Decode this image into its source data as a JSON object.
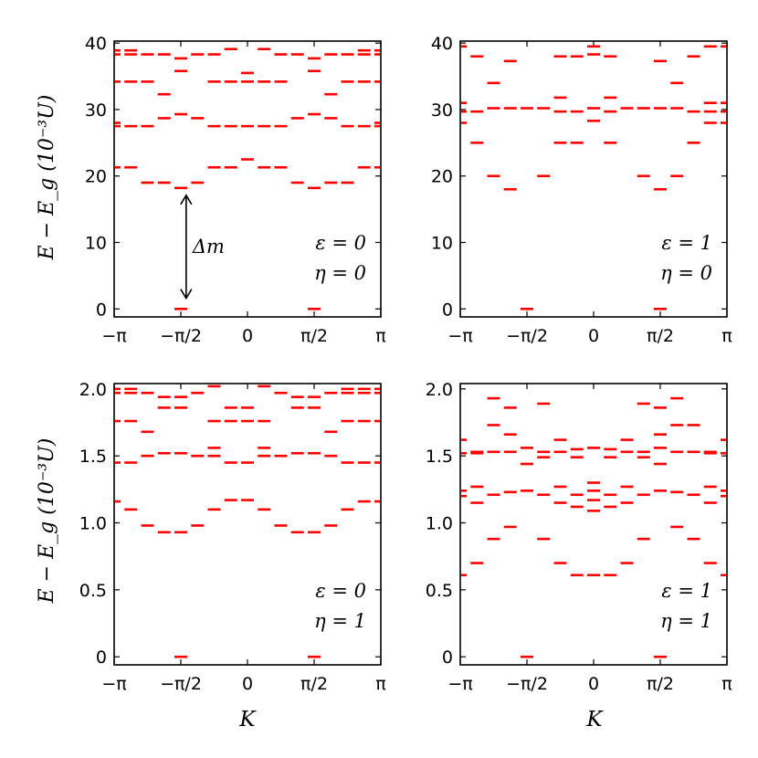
{
  "figure": {
    "ylabel": "E − E_g  (10⁻³U)",
    "xlabel": "K",
    "annotation": "Δm"
  },
  "chart_data": [
    {
      "type": "scatter",
      "title": "",
      "xlabel": "",
      "ylabel": "E − E_g (10⁻³U)",
      "xlim": [
        -3.1416,
        3.1416
      ],
      "ylim": [
        -1.2,
        40.3
      ],
      "xticks": [
        "−π",
        "−π/2",
        "0",
        "π/2",
        "π"
      ],
      "yticks": [
        0,
        10,
        20,
        30,
        40
      ],
      "ytick_labels": [
        "0",
        "10",
        "20",
        "30",
        "40"
      ],
      "parameters": [
        "ε = 0",
        "η = 0"
      ],
      "annotation": {
        "label": "Δm",
        "from": 18.2,
        "to": 0.5,
        "x": -1.5708
      },
      "marker_color": "#ff0000",
      "points": [
        {
          "x": -3.1416,
          "y": [
            21.3,
            27.5,
            28.0,
            34.2,
            38.3,
            38.9
          ]
        },
        {
          "x": -2.7489,
          "y": [
            21.3,
            27.5,
            34.2,
            38.3,
            38.9
          ]
        },
        {
          "x": -2.3562,
          "y": [
            19.0,
            27.5,
            34.2,
            38.3
          ]
        },
        {
          "x": -1.9635,
          "y": [
            19.0,
            28.7,
            32.3,
            38.3
          ]
        },
        {
          "x": -1.5708,
          "y": [
            0,
            18.2,
            29.3,
            35.8,
            37.7
          ]
        },
        {
          "x": -1.1781,
          "y": [
            19.0,
            28.7,
            38.3
          ]
        },
        {
          "x": -0.7854,
          "y": [
            21.3,
            27.5,
            34.2,
            38.3
          ]
        },
        {
          "x": -0.3927,
          "y": [
            21.3,
            27.5,
            34.2,
            39.1
          ]
        },
        {
          "x": 0.0,
          "y": [
            22.5,
            27.5,
            34.2,
            35.5
          ]
        },
        {
          "x": 0.3927,
          "y": [
            21.3,
            27.5,
            34.2,
            39.1
          ]
        },
        {
          "x": 0.7854,
          "y": [
            21.3,
            27.5,
            34.2,
            38.3
          ]
        },
        {
          "x": 1.1781,
          "y": [
            19.0,
            28.7,
            38.3
          ]
        },
        {
          "x": 1.5708,
          "y": [
            0,
            18.2,
            29.3,
            35.8,
            37.7
          ]
        },
        {
          "x": 1.9635,
          "y": [
            19.0,
            28.7,
            32.3,
            38.3
          ]
        },
        {
          "x": 2.3562,
          "y": [
            19.0,
            27.5,
            34.2,
            38.3
          ]
        },
        {
          "x": 2.7489,
          "y": [
            21.3,
            27.5,
            34.2,
            38.3,
            38.9
          ]
        },
        {
          "x": 3.1416,
          "y": [
            21.3,
            27.5,
            28.0,
            34.2,
            38.3,
            38.9
          ]
        }
      ]
    },
    {
      "type": "scatter",
      "title": "",
      "xlabel": "",
      "ylabel": "",
      "xlim": [
        -3.1416,
        3.1416
      ],
      "ylim": [
        -1.2,
        40.3
      ],
      "xticks": [
        "−π",
        "−π/2",
        "0",
        "π/2",
        "π"
      ],
      "yticks": [
        0,
        10,
        20,
        30,
        40
      ],
      "ytick_labels": [
        "0",
        "10",
        "20",
        "30",
        "40"
      ],
      "parameters": [
        "ε = 1",
        "η = 0"
      ],
      "marker_color": "#ff0000",
      "points": [
        {
          "x": -3.1416,
          "y": [
            28.0,
            29.7,
            31.0,
            39.5
          ]
        },
        {
          "x": -2.7489,
          "y": [
            25.0,
            29.7,
            38.0
          ]
        },
        {
          "x": -2.3562,
          "y": [
            20.0,
            30.2,
            34.0
          ]
        },
        {
          "x": -1.9635,
          "y": [
            18.0,
            30.2,
            37.3
          ]
        },
        {
          "x": -1.5708,
          "y": [
            0,
            30.2
          ]
        },
        {
          "x": -1.1781,
          "y": [
            20.0,
            30.2
          ]
        },
        {
          "x": -0.7854,
          "y": [
            25.0,
            29.7,
            31.8,
            38.0
          ]
        },
        {
          "x": -0.3927,
          "y": [
            25.0,
            29.7,
            38.0
          ]
        },
        {
          "x": 0.0,
          "y": [
            28.3,
            30.2,
            38.3,
            39.5
          ]
        },
        {
          "x": 0.3927,
          "y": [
            25.0,
            29.7,
            31.8,
            38.0
          ]
        },
        {
          "x": 0.7854,
          "y": [
            30.2
          ]
        },
        {
          "x": 1.1781,
          "y": [
            20.0,
            30.2
          ]
        },
        {
          "x": 1.5708,
          "y": [
            0,
            18.0,
            30.2,
            37.3
          ]
        },
        {
          "x": 1.9635,
          "y": [
            20.0,
            30.2,
            34.0
          ]
        },
        {
          "x": 2.3562,
          "y": [
            25.0,
            29.7,
            38.0
          ]
        },
        {
          "x": 2.7489,
          "y": [
            28.0,
            29.7,
            31.0,
            39.5
          ]
        },
        {
          "x": 3.1416,
          "y": [
            28.0,
            29.7,
            31.0,
            39.5
          ]
        }
      ]
    },
    {
      "type": "scatter",
      "title": "",
      "xlabel": "K",
      "ylabel": "E − E_g (10⁻³U)",
      "xlim": [
        -3.1416,
        3.1416
      ],
      "ylim": [
        -0.06,
        2.04
      ],
      "xticks": [
        "−π",
        "−π/2",
        "0",
        "π/2",
        "π"
      ],
      "yticks": [
        0,
        0.5,
        1.0,
        1.5,
        2.0
      ],
      "ytick_labels": [
        "0",
        "0.5",
        "1.0",
        "1.5",
        "2.0"
      ],
      "parameters": [
        "ε = 0",
        "η = 1"
      ],
      "marker_color": "#ff0000",
      "points": [
        {
          "x": -3.1416,
          "y": [
            1.16,
            1.45,
            1.76,
            1.97,
            2.0
          ]
        },
        {
          "x": -2.7489,
          "y": [
            1.1,
            1.45,
            1.76,
            1.97,
            2.0
          ]
        },
        {
          "x": -2.3562,
          "y": [
            0.98,
            1.5,
            1.68,
            1.97
          ]
        },
        {
          "x": -1.9635,
          "y": [
            0.93,
            1.52,
            1.86,
            1.94
          ]
        },
        {
          "x": -1.5708,
          "y": [
            0,
            0.93,
            1.52,
            1.86,
            1.94
          ]
        },
        {
          "x": -1.1781,
          "y": [
            0.98,
            1.5,
            1.97
          ]
        },
        {
          "x": -0.7854,
          "y": [
            1.1,
            1.5,
            1.56,
            1.76,
            2.02
          ]
        },
        {
          "x": -0.3927,
          "y": [
            1.17,
            1.45,
            1.76,
            1.86
          ]
        },
        {
          "x": 0.0,
          "y": [
            1.17,
            1.45,
            1.76,
            1.86
          ]
        },
        {
          "x": 0.3927,
          "y": [
            1.1,
            1.5,
            1.56,
            1.76,
            2.02
          ]
        },
        {
          "x": 0.7854,
          "y": [
            0.98,
            1.5,
            1.97
          ]
        },
        {
          "x": 1.1781,
          "y": [
            0.93,
            1.52,
            1.86,
            1.94
          ]
        },
        {
          "x": 1.5708,
          "y": [
            0,
            0.93,
            1.52,
            1.86,
            1.94
          ]
        },
        {
          "x": 1.9635,
          "y": [
            0.98,
            1.5,
            1.68,
            1.97
          ]
        },
        {
          "x": 2.3562,
          "y": [
            1.1,
            1.45,
            1.76,
            1.97,
            2.0
          ]
        },
        {
          "x": 2.7489,
          "y": [
            1.16,
            1.45,
            1.76,
            1.97,
            2.0
          ]
        },
        {
          "x": 3.1416,
          "y": [
            1.16,
            1.45,
            1.76,
            1.97,
            2.0
          ]
        }
      ]
    },
    {
      "type": "scatter",
      "title": "",
      "xlabel": "K",
      "ylabel": "",
      "xlim": [
        -3.1416,
        3.1416
      ],
      "ylim": [
        -0.06,
        2.04
      ],
      "xticks": [
        "−π",
        "−π/2",
        "0",
        "π/2",
        "π"
      ],
      "yticks": [
        0,
        0.5,
        1.0,
        1.5,
        2.0
      ],
      "ytick_labels": [
        "0",
        "0.5",
        "1.0",
        "1.5",
        "2.0"
      ],
      "parameters": [
        "ε = 1",
        "η = 1"
      ],
      "marker_color": "#ff0000",
      "points": [
        {
          "x": -3.1416,
          "y": [
            0.61,
            1.2,
            1.24,
            1.52,
            1.62
          ]
        },
        {
          "x": -2.7489,
          "y": [
            0.7,
            1.15,
            1.27,
            1.52,
            1.53
          ]
        },
        {
          "x": -2.3562,
          "y": [
            0.88,
            1.21,
            1.53,
            1.73,
            1.93
          ]
        },
        {
          "x": -1.9635,
          "y": [
            0.97,
            1.23,
            1.53,
            1.66,
            1.86
          ]
        },
        {
          "x": -1.5708,
          "y": [
            0,
            1.24,
            1.44,
            1.56
          ]
        },
        {
          "x": -1.1781,
          "y": [
            0.88,
            1.21,
            1.49,
            1.53,
            1.89
          ]
        },
        {
          "x": -0.7854,
          "y": [
            0.7,
            1.15,
            1.27,
            1.53,
            1.62
          ]
        },
        {
          "x": -0.3927,
          "y": [
            0.61,
            1.12,
            1.21,
            1.49,
            1.55
          ]
        },
        {
          "x": 0.0,
          "y": [
            0.61,
            1.09,
            1.17,
            1.24,
            1.3,
            1.56
          ]
        },
        {
          "x": 0.3927,
          "y": [
            0.61,
            1.12,
            1.21,
            1.49,
            1.55
          ]
        },
        {
          "x": 0.7854,
          "y": [
            0.7,
            1.15,
            1.27,
            1.53,
            1.62
          ]
        },
        {
          "x": 1.1781,
          "y": [
            0.88,
            1.21,
            1.49,
            1.53,
            1.89
          ]
        },
        {
          "x": 1.5708,
          "y": [
            0,
            1.24,
            1.44,
            1.56,
            1.66,
            1.86
          ]
        },
        {
          "x": 1.9635,
          "y": [
            0.97,
            1.23,
            1.53,
            1.73,
            1.93
          ]
        },
        {
          "x": 2.3562,
          "y": [
            0.88,
            1.21,
            1.53,
            1.73
          ]
        },
        {
          "x": 2.7489,
          "y": [
            0.7,
            1.15,
            1.27,
            1.52,
            1.53
          ]
        },
        {
          "x": 3.1416,
          "y": [
            0.61,
            1.2,
            1.24,
            1.52,
            1.62
          ]
        }
      ]
    }
  ]
}
